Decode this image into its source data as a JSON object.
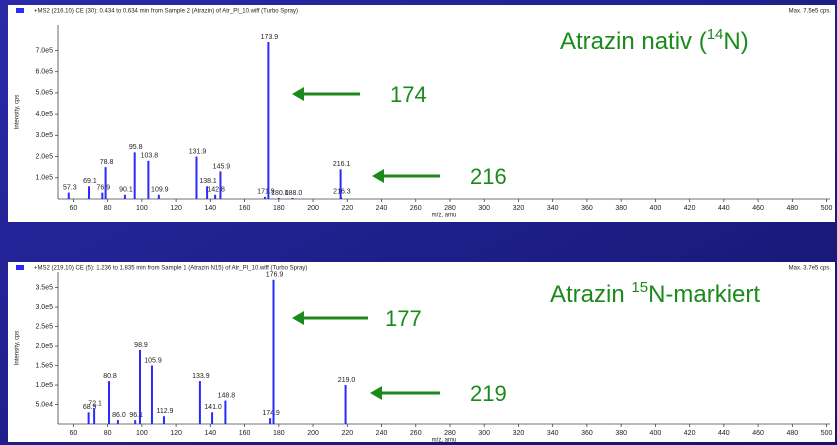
{
  "chart_data": [
    {
      "type": "bar",
      "header": "+MS2 (216.10) CE (30): 0.434 to 0.634 min from Sample 2 (Atrazin) of Atr_PI_10.wiff (Turbo Spray)",
      "max_label": "Max. 7.5e5 cps.",
      "y_label": "Intensity, cps",
      "x_label": "m/z, amu",
      "title_parts": [
        "Atrazin nativ (",
        "14",
        "N)"
      ],
      "annotations": [
        "174",
        "216"
      ],
      "color": "#2a2aff",
      "x": [
        57.3,
        69.1,
        76.9,
        78.8,
        90.1,
        95.8,
        103.8,
        109.9,
        131.9,
        138.1,
        142.8,
        145.9,
        171.9,
        173.9,
        180.0,
        188.0,
        216.1,
        216.3
      ],
      "x_labels": [
        "57.3",
        "69.1",
        "76.9",
        "78.8",
        "90.1",
        "95.8",
        "103.8",
        "109.9",
        "131.9",
        "138.1",
        "142.8",
        "145.9",
        "171.9",
        "173.9",
        "180.0",
        "188.0",
        "216.1",
        "216.3"
      ],
      "values": [
        30000,
        60000,
        30000,
        150000,
        20000,
        220000,
        180000,
        20000,
        200000,
        60000,
        20000,
        130000,
        10000,
        740000,
        5000,
        5000,
        140000,
        10000
      ],
      "xlim": [
        51,
        502
      ],
      "ylim": [
        0,
        820000
      ],
      "xticks": [
        60,
        80,
        100,
        120,
        140,
        160,
        180,
        200,
        220,
        240,
        260,
        280,
        300,
        320,
        340,
        360,
        380,
        400,
        420,
        440,
        460,
        480,
        500
      ],
      "yticks": [
        {
          "value": 100000,
          "label": "1.0e5"
        },
        {
          "value": 200000,
          "label": "2.0e5"
        },
        {
          "value": 300000,
          "label": "3.0e5"
        },
        {
          "value": 400000,
          "label": "4.0e5"
        },
        {
          "value": 500000,
          "label": "5.0e5"
        },
        {
          "value": 600000,
          "label": "6.0e5"
        },
        {
          "value": 700000,
          "label": "7.0e5"
        }
      ]
    },
    {
      "type": "bar",
      "header": "+MS2 (219.10) CE (5): 1.236 to 1.835 min from Sample 1 (Atrazin N15) of Atr_PI_10.wiff (Turbo Spray)",
      "max_label": "Max. 3.7e5 cps.",
      "y_label": "Intensity, cps",
      "x_label": "m/z, amu",
      "title_parts": [
        "Atrazin ",
        "15",
        "N-markiert"
      ],
      "annotations": [
        "177",
        "219"
      ],
      "color": "#2a2aff",
      "x": [
        68.9,
        72.1,
        80.8,
        86.0,
        96.1,
        98.9,
        105.9,
        112.9,
        133.9,
        141.0,
        148.8,
        174.9,
        176.9,
        219.0
      ],
      "x_labels": [
        "68.9",
        "72.1",
        "80.8",
        "86.0",
        "96.1",
        "98.9",
        "105.9",
        "112.9",
        "133.9",
        "141.0",
        "148.8",
        "174.9",
        "176.9",
        "219.0"
      ],
      "values": [
        30000,
        40000,
        110000,
        10000,
        10000,
        190000,
        150000,
        20000,
        110000,
        30000,
        60000,
        15000,
        370000,
        100000
      ],
      "xlim": [
        51,
        502
      ],
      "ylim": [
        0,
        390000
      ],
      "xticks": [
        60,
        80,
        100,
        120,
        140,
        160,
        180,
        200,
        220,
        240,
        260,
        280,
        300,
        320,
        340,
        360,
        380,
        400,
        420,
        440,
        460,
        480,
        500
      ],
      "yticks": [
        {
          "value": 50000,
          "label": "5.0e4"
        },
        {
          "value": 100000,
          "label": "1.0e5"
        },
        {
          "value": 150000,
          "label": "1.5e5"
        },
        {
          "value": 200000,
          "label": "2.0e5"
        },
        {
          "value": 250000,
          "label": "2.5e5"
        },
        {
          "value": 300000,
          "label": "3.0e5"
        },
        {
          "value": 350000,
          "label": "3.5e5"
        }
      ]
    }
  ]
}
